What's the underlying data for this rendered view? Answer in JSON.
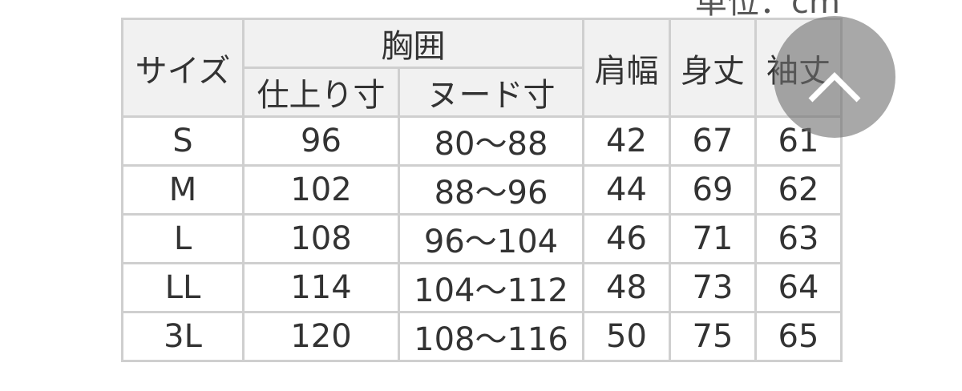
{
  "unit_label": "単位：cm",
  "table": {
    "headers": {
      "size": "サイズ",
      "chest": "胸囲",
      "chest_finished": "仕上り寸",
      "chest_nude": "ヌード寸",
      "shoulder": "肩幅",
      "length": "身丈",
      "sleeve": "袖丈"
    },
    "rows": [
      [
        "S",
        "96",
        "80〜88",
        "42",
        "67",
        "61"
      ],
      [
        "M",
        "102",
        "88〜96",
        "44",
        "69",
        "62"
      ],
      [
        "L",
        "108",
        "96〜104",
        "46",
        "71",
        "63"
      ],
      [
        "LL",
        "114",
        "104〜112",
        "48",
        "73",
        "64"
      ],
      [
        "3L",
        "120",
        "108〜116",
        "50",
        "75",
        "65"
      ]
    ]
  },
  "scroll_top_button": {
    "icon": "chevron-up-icon"
  }
}
